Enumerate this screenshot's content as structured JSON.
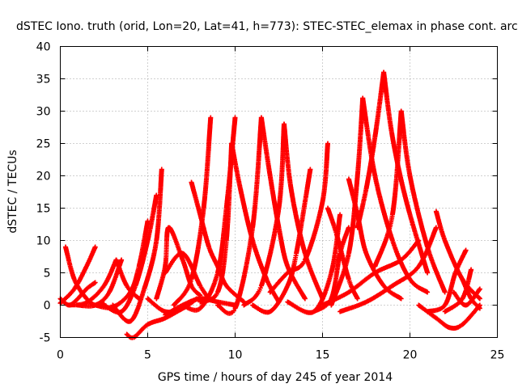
{
  "chart_data": {
    "type": "scatter",
    "title": "dSTEC Iono. truth (orid, Lon=20, Lat=41, h=773): STEC-STEC_elemax in phase cont. arc",
    "xlabel": "GPS time / hours of day 245 of year 2014",
    "ylabel": "dSTEC  / TECUs",
    "xlim": [
      0,
      25
    ],
    "ylim": [
      -5,
      40
    ],
    "xticks": [
      0,
      5,
      10,
      15,
      20,
      25
    ],
    "yticks": [
      -5,
      0,
      5,
      10,
      15,
      20,
      25,
      30,
      35,
      40
    ],
    "grid": true,
    "marker": "plus",
    "series_color": "#ff0000",
    "arcs": [
      {
        "x": [
          0.0,
          0.5,
          1.0,
          1.5,
          2.0
        ],
        "y": [
          1.0,
          0.0,
          1.0,
          2.5,
          3.5
        ]
      },
      {
        "x": [
          0.3,
          0.8,
          1.5,
          2.0,
          2.5
        ],
        "y": [
          9.0,
          4.0,
          1.0,
          0.0,
          0.2
        ]
      },
      {
        "x": [
          0.0,
          0.8,
          1.5,
          2.0
        ],
        "y": [
          0.3,
          2.5,
          6.0,
          9.0
        ]
      },
      {
        "x": [
          0.5,
          1.5,
          2.5,
          3.2
        ],
        "y": [
          0.0,
          0.4,
          3.0,
          7.0
        ]
      },
      {
        "x": [
          1.0,
          2.0,
          2.8,
          3.5
        ],
        "y": [
          0.0,
          0.0,
          2.0,
          7.0
        ]
      },
      {
        "x": [
          3.2,
          3.8,
          4.5
        ],
        "y": [
          7.0,
          3.0,
          1.0
        ]
      },
      {
        "x": [
          2.0,
          3.0,
          4.0,
          4.5,
          5.0
        ],
        "y": [
          0.0,
          -0.3,
          2.0,
          6.0,
          13.0
        ]
      },
      {
        "x": [
          2.5,
          3.5,
          4.3,
          5.0,
          5.5
        ],
        "y": [
          0.0,
          -1.0,
          3.0,
          10.0,
          17.0
        ]
      },
      {
        "x": [
          3.0,
          4.0,
          4.8,
          5.5,
          5.8
        ],
        "y": [
          0.0,
          -2.5,
          2.5,
          10.0,
          21.0
        ]
      },
      {
        "x": [
          3.8,
          4.2,
          5.0,
          6.0,
          7.0
        ],
        "y": [
          -4.5,
          -5.0,
          -3.0,
          -2.0,
          -0.5
        ]
      },
      {
        "x": [
          5.0,
          6.0,
          7.0,
          7.8
        ],
        "y": [
          1.0,
          -1.0,
          -0.5,
          1.0
        ]
      },
      {
        "x": [
          5.5,
          6.0,
          6.2,
          7.0,
          7.5,
          8.0
        ],
        "y": [
          1.0,
          6.0,
          12.0,
          7.0,
          3.0,
          1.5
        ]
      },
      {
        "x": [
          6.0,
          7.0,
          8.0,
          8.5
        ],
        "y": [
          5.0,
          8.0,
          3.0,
          1.0
        ]
      },
      {
        "x": [
          7.5,
          8.0,
          8.5,
          9.0,
          9.5,
          10.5
        ],
        "y": [
          19.0,
          14.0,
          9.0,
          6.0,
          3.0,
          0.5
        ]
      },
      {
        "x": [
          6.5,
          7.5,
          8.2,
          8.6
        ],
        "y": [
          0.0,
          4.0,
          15.0,
          29.0
        ]
      },
      {
        "x": [
          7.0,
          8.0,
          9.0,
          9.5,
          10.0
        ],
        "y": [
          0.0,
          -0.5,
          5.0,
          15.0,
          29.0
        ]
      },
      {
        "x": [
          8.0,
          9.0,
          9.5,
          9.8
        ],
        "y": [
          0.5,
          2.0,
          10.0,
          25.0
        ]
      },
      {
        "x": [
          9.8,
          10.3,
          11.0,
          11.8,
          12.5
        ],
        "y": [
          25.0,
          18.0,
          10.0,
          4.0,
          0.5
        ]
      },
      {
        "x": [
          9.0,
          10.0,
          11.0,
          11.5
        ],
        "y": [
          0.0,
          -0.5,
          12.0,
          29.0
        ]
      },
      {
        "x": [
          11.5,
          12.0,
          12.5,
          13.0,
          14.0
        ],
        "y": [
          29.0,
          20.0,
          12.0,
          6.0,
          1.0
        ]
      },
      {
        "x": [
          10.5,
          11.5,
          12.5,
          12.8
        ],
        "y": [
          0.0,
          3.0,
          15.0,
          28.0
        ]
      },
      {
        "x": [
          12.8,
          13.2,
          14.0,
          15.0
        ],
        "y": [
          28.0,
          18.0,
          8.0,
          1.0
        ]
      },
      {
        "x": [
          11.0,
          12.0,
          13.0,
          13.5,
          14.3
        ],
        "y": [
          0.0,
          -1.0,
          3.0,
          8.0,
          21.0
        ]
      },
      {
        "x": [
          12.0,
          13.0,
          14.0,
          15.0,
          15.3
        ],
        "y": [
          2.0,
          5.0,
          7.0,
          16.0,
          25.0
        ]
      },
      {
        "x": [
          15.3,
          15.8,
          16.5,
          17.0
        ],
        "y": [
          15.0,
          11.0,
          4.0,
          1.0
        ]
      },
      {
        "x": [
          13.0,
          14.5,
          15.5,
          16.0
        ],
        "y": [
          0.5,
          -1.0,
          5.0,
          14.0
        ]
      },
      {
        "x": [
          14.5,
          15.5,
          16.0,
          16.5
        ],
        "y": [
          -1.0,
          1.0,
          8.0,
          12.0
        ]
      },
      {
        "x": [
          16.5,
          17.0,
          17.5,
          18.5,
          19.5
        ],
        "y": [
          19.5,
          14.0,
          8.0,
          3.0,
          1.0
        ]
      },
      {
        "x": [
          15.5,
          16.5,
          17.0,
          17.3
        ],
        "y": [
          0.0,
          8.0,
          20.0,
          32.0
        ]
      },
      {
        "x": [
          17.3,
          18.0,
          19.0,
          20.0,
          21.0
        ],
        "y": [
          32.0,
          20.0,
          10.0,
          4.0,
          2.0
        ]
      },
      {
        "x": [
          17.0,
          17.5,
          18.0,
          18.5
        ],
        "y": [
          12.0,
          18.0,
          26.0,
          36.0
        ]
      },
      {
        "x": [
          18.5,
          19.0,
          19.8,
          21.0
        ],
        "y": [
          36.0,
          26.0,
          16.0,
          5.0
        ]
      },
      {
        "x": [
          18.0,
          19.0,
          19.5
        ],
        "y": [
          6.0,
          14.0,
          30.0
        ]
      },
      {
        "x": [
          19.5,
          20.0,
          21.0,
          22.0
        ],
        "y": [
          30.0,
          20.0,
          9.0,
          2.0
        ]
      },
      {
        "x": [
          15.0,
          16.5,
          18.0,
          19.5,
          20.5
        ],
        "y": [
          0.0,
          2.0,
          5.0,
          7.0,
          10.0
        ]
      },
      {
        "x": [
          16.0,
          17.5,
          19.0,
          20.5,
          21.5
        ],
        "y": [
          -1.0,
          0.5,
          3.0,
          6.0,
          12.0
        ]
      },
      {
        "x": [
          21.5,
          22.0,
          23.0,
          24.0
        ],
        "y": [
          14.5,
          10.0,
          4.0,
          1.0
        ]
      },
      {
        "x": [
          20.5,
          21.5,
          22.3,
          23.0,
          24.0
        ],
        "y": [
          0.0,
          -2.0,
          -3.5,
          -3.0,
          0.0
        ]
      },
      {
        "x": [
          21.0,
          22.0,
          22.6,
          23.2
        ],
        "y": [
          -1.0,
          0.0,
          5.0,
          8.5
        ]
      },
      {
        "x": [
          22.5,
          23.2,
          24.0
        ],
        "y": [
          2.0,
          0.0,
          2.5
        ]
      },
      {
        "x": [
          22.0,
          23.0,
          23.5
        ],
        "y": [
          -1.0,
          1.0,
          5.5
        ]
      },
      {
        "x": [
          23.0,
          23.5,
          24.0
        ],
        "y": [
          4.0,
          1.0,
          -0.5
        ]
      },
      {
        "x": [
          6.0,
          7.0,
          8.0,
          9.0,
          10.0
        ],
        "y": [
          -1.5,
          0.0,
          1.0,
          0.5,
          0.0
        ]
      }
    ]
  }
}
